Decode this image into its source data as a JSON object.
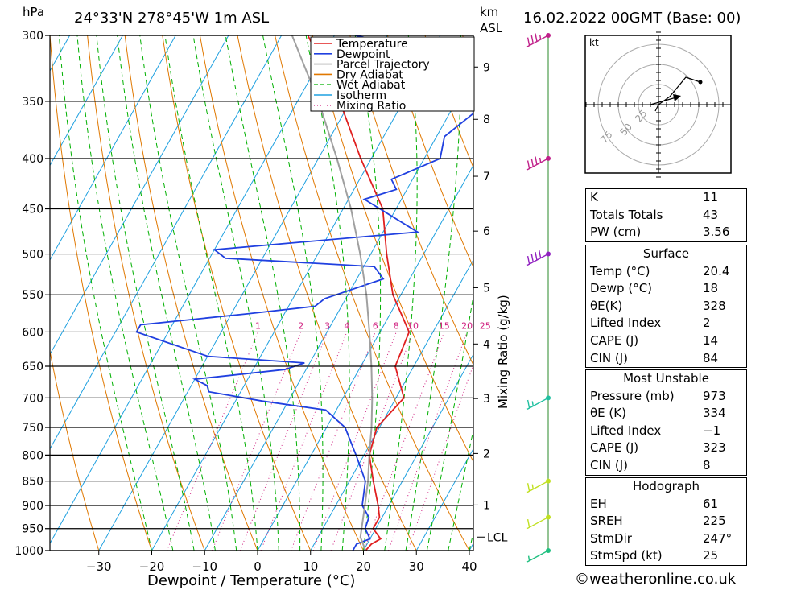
{
  "header": {
    "pressure_unit": "hPa",
    "location": "24°33'N  278°45'W  1m  ASL",
    "km_unit": "km",
    "asl": "ASL",
    "datetime": "16.02.2022  00GMT  (Base: 00)"
  },
  "chart_data": {
    "type": "line",
    "title": "24°33'N  278°45'W  1m  ASL",
    "xlabel": "Dewpoint / Temperature (°C)",
    "ylabel": "hPa",
    "x_ticks": [
      -30,
      -20,
      -10,
      0,
      10,
      20,
      30,
      40
    ],
    "x_tick_labels": [
      "−30",
      "−20",
      "−10",
      "0",
      "10",
      "20",
      "30",
      "40"
    ],
    "pressure_levels": [
      300,
      350,
      400,
      450,
      500,
      550,
      600,
      650,
      700,
      750,
      800,
      850,
      900,
      950,
      1000
    ],
    "xlim": [
      -40,
      40
    ],
    "ylim": [
      1000,
      300
    ],
    "y_scale": "log",
    "altitude_km": [
      {
        "km": 9,
        "p": 323
      },
      {
        "km": 8,
        "p": 365
      },
      {
        "km": 7,
        "p": 417
      },
      {
        "km": 6,
        "p": 474
      },
      {
        "km": 5,
        "p": 541
      },
      {
        "km": 4,
        "p": 617
      },
      {
        "km": 3,
        "p": 701
      },
      {
        "km": 2,
        "p": 797
      },
      {
        "km": 1,
        "p": 899
      }
    ],
    "lcl_label": "LCL",
    "lcl_pressure": 969,
    "mixing_ratio_label": "Mixing Ratio (g/kg)",
    "mixing_ratio_values": [
      1,
      2,
      3,
      4,
      6,
      8,
      10,
      15,
      20,
      25
    ],
    "legend_position": "top-right",
    "legend": [
      {
        "name": "Temperature",
        "color": "#e02020",
        "style": "solid"
      },
      {
        "name": "Dewpoint",
        "color": "#2040e0",
        "style": "solid"
      },
      {
        "name": "Parcel Trajectory",
        "color": "#a0a0a0",
        "style": "solid"
      },
      {
        "name": "Dry Adiabat",
        "color": "#e07800",
        "style": "solid"
      },
      {
        "name": "Wet Adiabat",
        "color": "#00b000",
        "style": "dashed"
      },
      {
        "name": "Isotherm",
        "color": "#1ea0e0",
        "style": "solid"
      },
      {
        "name": "Mixing Ratio",
        "color": "#d02080",
        "style": "dotted"
      }
    ],
    "series": [
      {
        "name": "Temperature",
        "color": "#e02020",
        "p": [
          1000,
          985,
          973,
          950,
          925,
          900,
          850,
          800,
          750,
          700,
          650,
          600,
          550,
          500,
          450,
          400,
          350,
          300
        ],
        "values": [
          20.4,
          20.8,
          22.0,
          19.5,
          19.5,
          18.0,
          14.5,
          11.0,
          9.5,
          11.5,
          6.5,
          5.5,
          -1.5,
          -7.0,
          -12.5,
          -22.0,
          -32.0,
          -45.0
        ]
      },
      {
        "name": "Dewpoint",
        "color": "#2040e0",
        "p": [
          1000,
          985,
          973,
          950,
          925,
          900,
          850,
          800,
          750,
          720,
          705,
          690,
          680,
          670,
          655,
          645,
          635,
          600,
          590,
          575,
          565,
          555,
          530,
          515,
          505,
          495,
          475,
          440,
          430,
          420,
          400,
          380,
          360,
          330,
          320,
          300
        ],
        "values": [
          18.0,
          18.0,
          20.0,
          18.0,
          17.5,
          15.0,
          13.0,
          8.5,
          3.5,
          -2.0,
          -15.0,
          -26.0,
          -27.0,
          -30.0,
          -14.0,
          -11.0,
          -30.0,
          -46.0,
          -46.0,
          -27.0,
          -15.0,
          -14.0,
          -5.0,
          -8.0,
          -37.0,
          -40.0,
          -3.5,
          -17.0,
          -12.0,
          -14.0,
          -7.0,
          -8.5,
          -5.5,
          -10.5,
          -10.0,
          -36.0
        ]
      },
      {
        "name": "Parcel Trajectory",
        "color": "#a0a0a0",
        "p": [
          1000,
          969,
          900,
          850,
          800,
          750,
          700,
          650,
          600,
          550,
          500,
          450,
          400,
          350,
          300
        ],
        "values": [
          20.4,
          18.0,
          15.5,
          13.5,
          11.0,
          8.5,
          5.5,
          2.0,
          -2.0,
          -6.5,
          -12.0,
          -18.5,
          -26.5,
          -36.0,
          -48.0
        ]
      }
    ],
    "wind_barbs": [
      {
        "p": 300,
        "speed_kt": 35,
        "color": "#c0208a"
      },
      {
        "p": 400,
        "speed_kt": 35,
        "color": "#c0208a"
      },
      {
        "p": 500,
        "speed_kt": 40,
        "color": "#9020c0"
      },
      {
        "p": 700,
        "speed_kt": 15,
        "color": "#20c0a0"
      },
      {
        "p": 850,
        "speed_kt": 15,
        "color": "#c0e020"
      },
      {
        "p": 925,
        "speed_kt": 10,
        "color": "#c0e020"
      },
      {
        "p": 1000,
        "speed_kt": 5,
        "color": "#20c080"
      }
    ]
  },
  "hodograph": {
    "unit": "kt",
    "rings": [
      "25",
      "50",
      "75"
    ]
  },
  "indices": [
    {
      "label": "K",
      "value": "11"
    },
    {
      "label": "Totals Totals",
      "value": "43"
    },
    {
      "label": "PW (cm)",
      "value": "3.56"
    }
  ],
  "surface": {
    "title": "Surface",
    "rows": [
      {
        "label": "Temp (°C)",
        "value": "20.4"
      },
      {
        "label": "Dewp (°C)",
        "value": "18"
      },
      {
        "label": "θE(K)",
        "value": "328"
      },
      {
        "label": "Lifted Index",
        "value": "2"
      },
      {
        "label": "CAPE (J)",
        "value": "14"
      },
      {
        "label": "CIN (J)",
        "value": "84"
      }
    ]
  },
  "most_unstable": {
    "title": "Most Unstable",
    "rows": [
      {
        "label": "Pressure (mb)",
        "value": "973"
      },
      {
        "label": "θE (K)",
        "value": "334"
      },
      {
        "label": "Lifted Index",
        "value": "−1"
      },
      {
        "label": "CAPE (J)",
        "value": "323"
      },
      {
        "label": "CIN (J)",
        "value": "8"
      }
    ]
  },
  "hodograph_table": {
    "title": "Hodograph",
    "rows": [
      {
        "label": "EH",
        "value": "61"
      },
      {
        "label": "SREH",
        "value": "225"
      },
      {
        "label": "StmDir",
        "value": "247°"
      },
      {
        "label": "StmSpd (kt)",
        "value": "25"
      }
    ]
  },
  "credit": "©weatheronline.co.uk"
}
